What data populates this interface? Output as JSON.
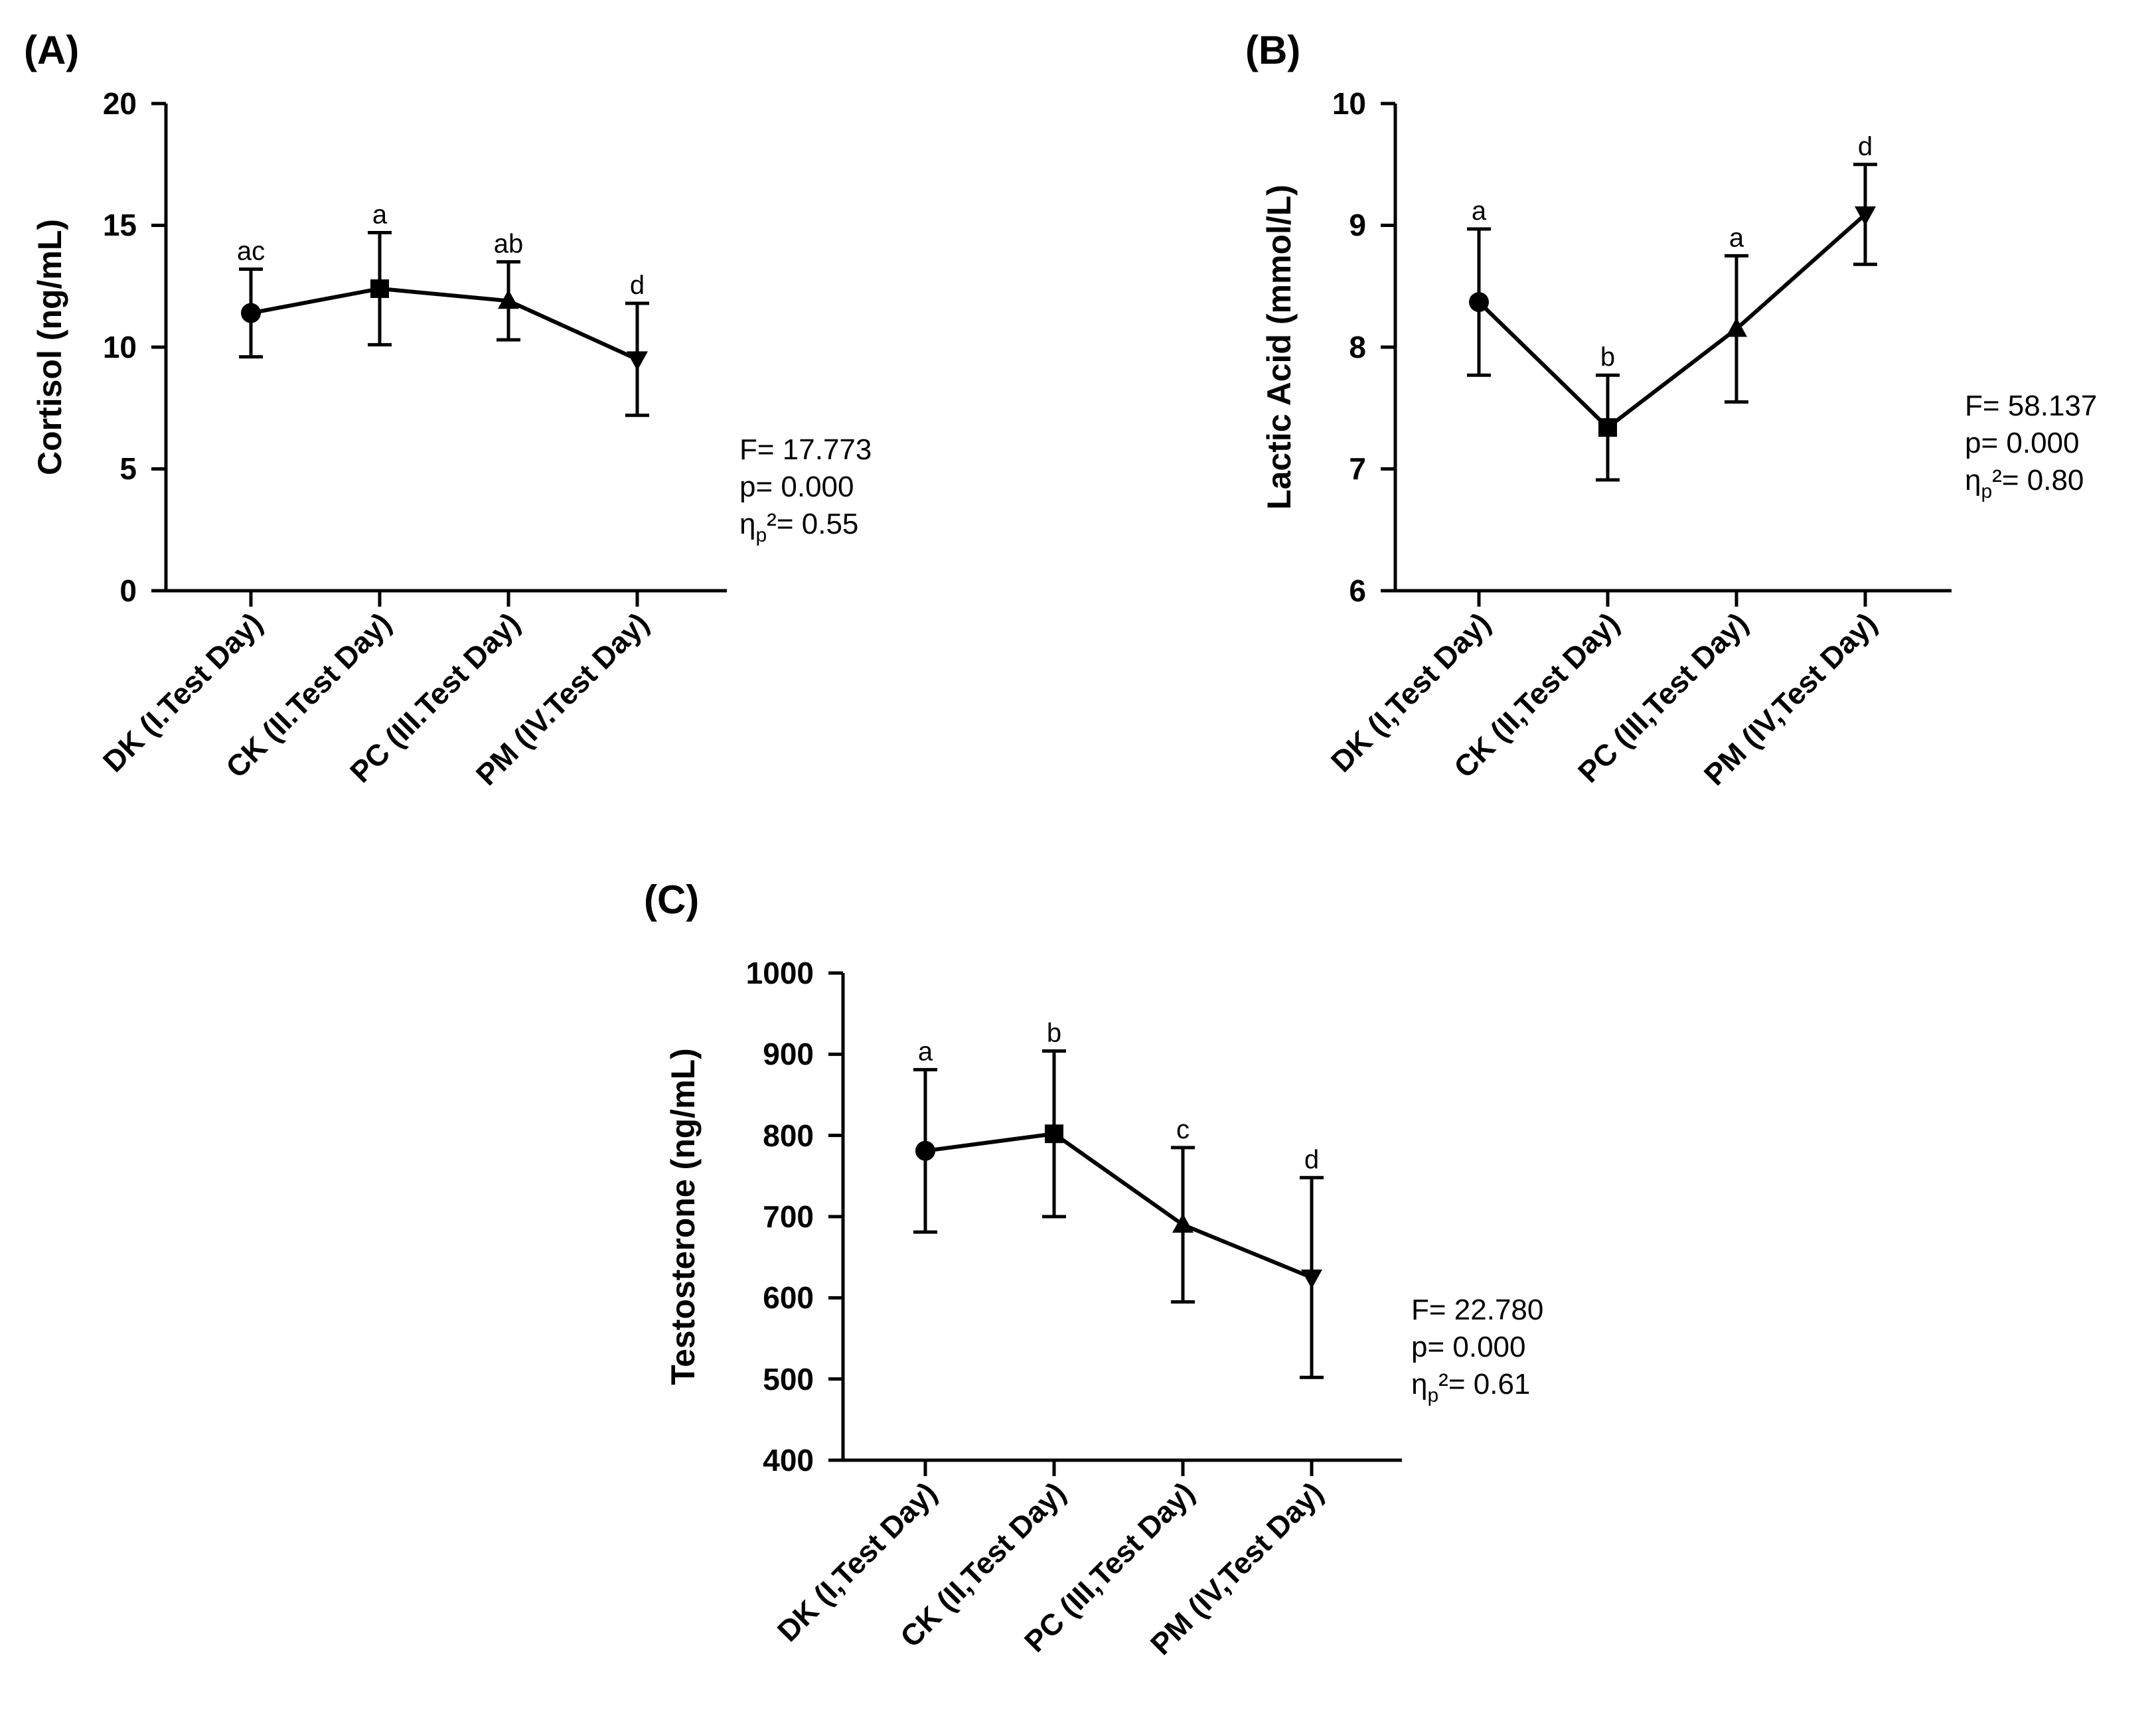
{
  "chart_data": [
    {
      "type": "line",
      "panel": "(A)",
      "ylabel": "Cortisol (ng/mL)",
      "ylim": [
        0,
        20
      ],
      "yticks": [
        "0",
        "5",
        "10",
        "15",
        "20"
      ],
      "categories": [
        "DK (I.Test Day)",
        "CK (II.Test Day)",
        "PC (III.Test Day)",
        "PM (IV.Test Day)"
      ],
      "values": [
        11.4,
        12.4,
        11.9,
        9.5
      ],
      "error": [
        1.8,
        2.3,
        1.6,
        2.3
      ],
      "markers": [
        "circle",
        "square",
        "triangle-up",
        "triangle-down"
      ],
      "significance": [
        "ac",
        "a",
        "ab",
        "d"
      ],
      "stats": {
        "f": "F= 17.773",
        "p": "p= 0.000",
        "eta_main": "η",
        "eta_sub": "p",
        "eta_rest": "²= 0.55"
      }
    },
    {
      "type": "line",
      "panel": "(B)",
      "ylabel": "Lactic Acid (mmol/L)",
      "ylim": [
        6,
        10
      ],
      "yticks": [
        "6",
        "7",
        "8",
        "9",
        "10"
      ],
      "categories": [
        "DK (I,Test Day)",
        "CK (II,Test Day)",
        "PC (III,Test Day)",
        "PM (IV,Test Day)"
      ],
      "values": [
        8.37,
        7.34,
        8.15,
        9.09
      ],
      "error": [
        0.6,
        0.43,
        0.6,
        0.41
      ],
      "markers": [
        "circle",
        "square",
        "triangle-up",
        "triangle-down"
      ],
      "significance": [
        "a",
        "b",
        "a",
        "d"
      ],
      "stats": {
        "f": "F= 58.137",
        "p": "p= 0.000",
        "eta_main": "η",
        "eta_sub": "p",
        "eta_rest": "²= 0.80"
      }
    },
    {
      "type": "line",
      "panel": "(C)",
      "ylabel": "Testosterone (ng/mL)",
      "ylim": [
        400,
        1000
      ],
      "yticks": [
        "400",
        "500",
        "600",
        "700",
        "800",
        "900",
        "1000"
      ],
      "categories": [
        "DK (I,Test Day)",
        "CK (II,Test Day)",
        "PC (III,Test Day)",
        "PM (IV,Test Day)"
      ],
      "values": [
        781,
        802,
        690,
        625
      ],
      "error": [
        100,
        102,
        95,
        123
      ],
      "markers": [
        "circle",
        "square",
        "triangle-up",
        "triangle-down"
      ],
      "significance": [
        "a",
        "b",
        "c",
        "d"
      ],
      "stats": {
        "f": "F= 22.780",
        "p": "p= 0.000",
        "eta_main": "η",
        "eta_sub": "p",
        "eta_rest": "²= 0.61"
      }
    }
  ]
}
